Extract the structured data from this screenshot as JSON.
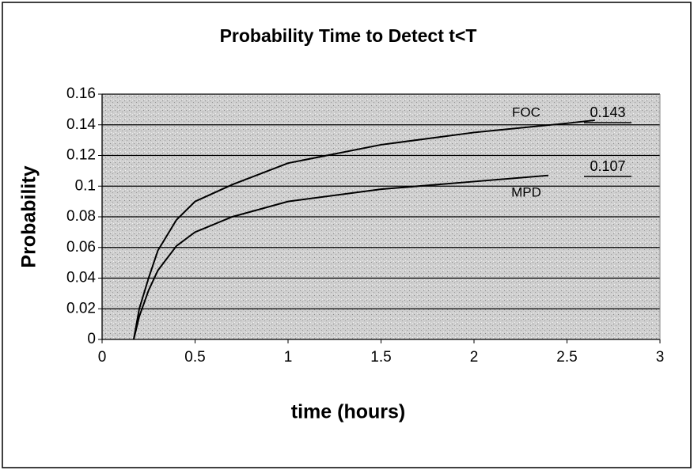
{
  "chart_data": {
    "type": "line",
    "title": "Probability Time to Detect t<T",
    "x_label": "time (hours)",
    "y_label": "Probability",
    "xlim": [
      0,
      3
    ],
    "xticks": [
      0,
      0.5,
      1,
      1.5,
      2,
      2.5,
      3
    ],
    "ylim": [
      0,
      0.16
    ],
    "yticks": [
      0,
      0.02,
      0.04,
      0.06,
      0.08,
      0.1,
      0.12,
      0.14,
      0.16
    ],
    "grid": true,
    "series": [
      {
        "name": "FOC",
        "color": "#000000",
        "x": [
          0.17,
          0.2,
          0.25,
          0.3,
          0.4,
          0.5,
          0.7,
          1.0,
          1.5,
          2.0,
          2.5,
          2.65
        ],
        "values": [
          0,
          0.02,
          0.04,
          0.058,
          0.078,
          0.09,
          0.101,
          0.115,
          0.127,
          0.135,
          0.141,
          0.143
        ]
      },
      {
        "name": "MPD",
        "color": "#000000",
        "x": [
          0.17,
          0.2,
          0.25,
          0.3,
          0.4,
          0.5,
          0.7,
          1.0,
          1.5,
          2.0,
          2.4
        ],
        "values": [
          0,
          0.015,
          0.032,
          0.045,
          0.061,
          0.07,
          0.08,
          0.09,
          0.098,
          0.103,
          0.107
        ]
      }
    ],
    "annotations": [
      "0.143",
      "0.107"
    ]
  }
}
